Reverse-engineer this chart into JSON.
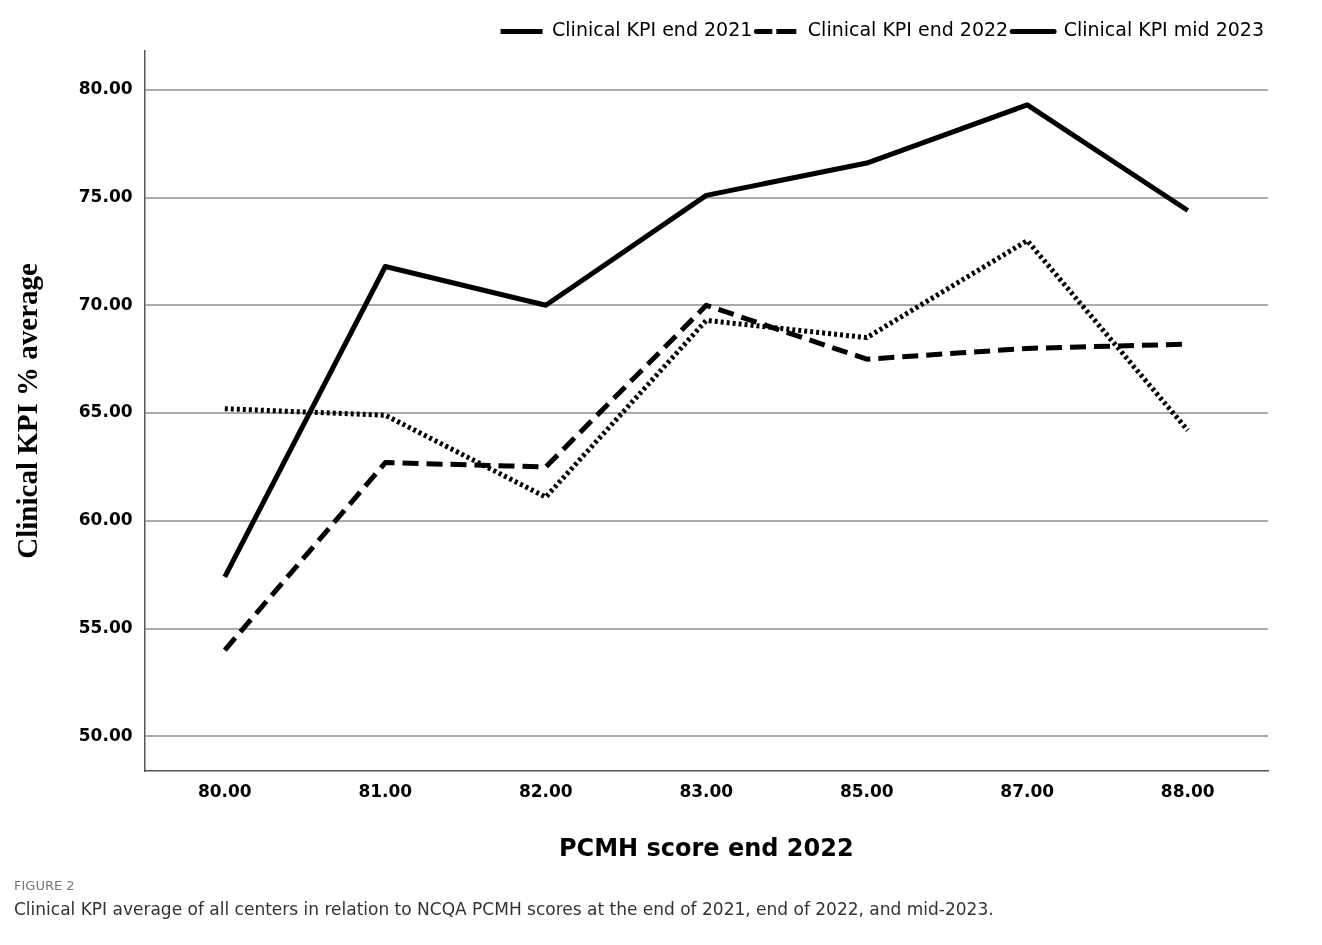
{
  "chart_data": {
    "type": "line",
    "xlabel": "PCMH score end 2022",
    "ylabel": "Clinical KPI % average",
    "categories": [
      "80.00",
      "81.00",
      "82.00",
      "83.00",
      "85.00",
      "87.00",
      "88.00"
    ],
    "series": [
      {
        "name": "Clinical KPI end 2021",
        "color": "#000000",
        "line_style": "dotted",
        "values": [
          65.2,
          64.9,
          61.1,
          69.3,
          68.5,
          73.0,
          64.2
        ]
      },
      {
        "name": "Clinical KPI end 2022",
        "color": "#000000",
        "line_style": "dashed",
        "values": [
          54.0,
          62.7,
          62.5,
          70.0,
          67.5,
          68.0,
          68.2
        ]
      },
      {
        "name": "Clinical KPI mid 2023",
        "color": "#000000",
        "line_style": "solid",
        "values": [
          57.4,
          71.8,
          70.0,
          75.1,
          76.6,
          79.3,
          74.4
        ]
      }
    ],
    "ylim": [
      48.4,
      81.8
    ],
    "yticks": [
      {
        "value": 50,
        "label": "50.00"
      },
      {
        "value": 55,
        "label": "55.00"
      },
      {
        "value": 60,
        "label": "60.00"
      },
      {
        "value": 65,
        "label": "65.00"
      },
      {
        "value": 70,
        "label": "70.00"
      },
      {
        "value": 75,
        "label": "75.00"
      },
      {
        "value": 80,
        "label": "80.00"
      }
    ],
    "grid": "y",
    "legend": "top right",
    "marker": "none",
    "annotations": [
      "FIGURE 2",
      "Clinical KPI average of all centers in relation to NCQA PCMH scores at the end of 2021, end of 2022, and mid-2023."
    ]
  }
}
